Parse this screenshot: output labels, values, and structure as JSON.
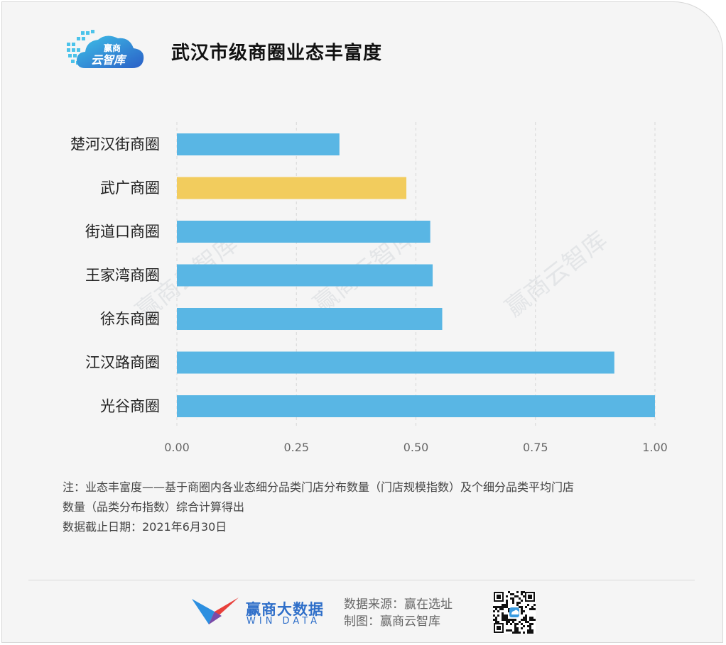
{
  "header": {
    "logo_top": "赢商",
    "logo_bottom": "云智库",
    "title": "武汉市级商圈业态丰富度"
  },
  "chart_data": {
    "type": "bar",
    "orientation": "horizontal",
    "categories": [
      "楚河汉街商圈",
      "武广商圈",
      "街道口商圈",
      "王家湾商圈",
      "徐东商圈",
      "江汉路商圈",
      "光谷商圈"
    ],
    "values": [
      0.34,
      0.48,
      0.53,
      0.535,
      0.555,
      0.915,
      1.0
    ],
    "highlight_index": 1,
    "xlim": [
      0,
      1
    ],
    "xticks": [
      "0.00",
      "0.25",
      "0.50",
      "0.75",
      "1.00"
    ],
    "grid": "vertical dashed",
    "colors": {
      "bar": "#59b6e4",
      "highlight": "#f2cc5d",
      "grid": "#d6d6d6"
    }
  },
  "watermark": "赢商云智库",
  "notes": [
    "注：业态丰富度——基于商圈内各业态细分品类门店分布数量（门店规模指数）及个细分品类平均门店",
    "数量（品类分布指数）综合计算得出",
    "数据截止日期：2021年6月30日"
  ],
  "footer": {
    "brand_cn": "赢商大数据",
    "brand_en": "WIN DATA",
    "source": "数据来源：赢在选址",
    "maker": "制图：赢商云智库"
  }
}
